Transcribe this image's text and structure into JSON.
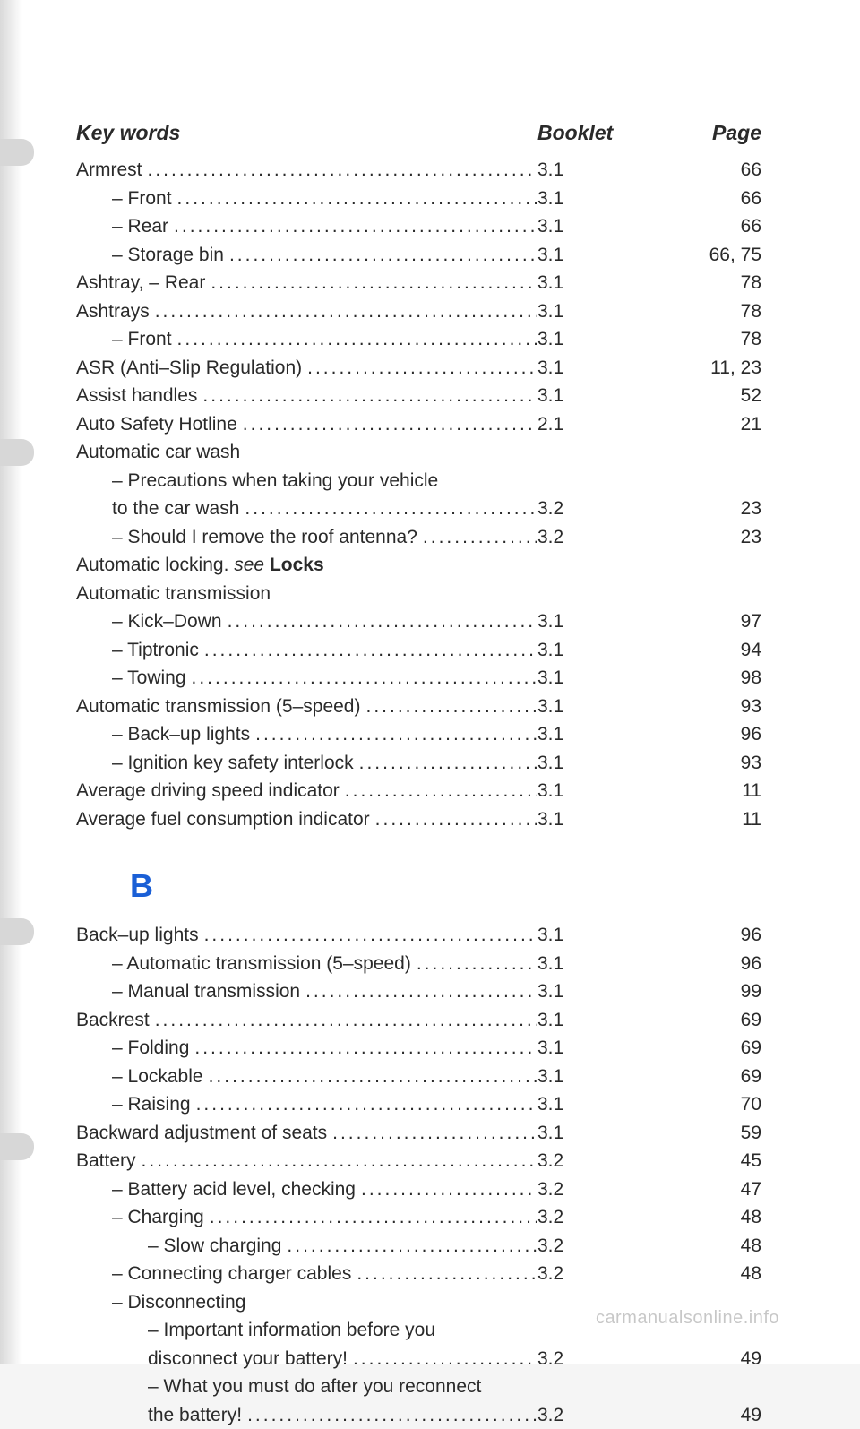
{
  "header": {
    "keywords": "Key words",
    "booklet": "Booklet",
    "page": "Page"
  },
  "section_letter": "B",
  "watermark": "carmanualsonline.info",
  "entries_a": [
    {
      "term": "Armrest",
      "indent": 0,
      "booklet": "3.1",
      "page": "66",
      "leader": true
    },
    {
      "term": "– Front",
      "indent": 1,
      "booklet": "3.1",
      "page": "66",
      "leader": true
    },
    {
      "term": "– Rear",
      "indent": 1,
      "booklet": "3.1",
      "page": "66",
      "leader": true
    },
    {
      "term": "– Storage bin",
      "indent": 1,
      "booklet": "3.1",
      "page": "66, 75",
      "leader": true
    },
    {
      "term": "Ashtray, – Rear",
      "indent": 0,
      "booklet": "3.1",
      "page": "78",
      "leader": true
    },
    {
      "term": "Ashtrays",
      "indent": 0,
      "booklet": "3.1",
      "page": "78",
      "leader": true
    },
    {
      "term": "– Front",
      "indent": 1,
      "booklet": "3.1",
      "page": "78",
      "leader": true
    },
    {
      "term": "ASR (Anti–Slip Regulation)",
      "indent": 0,
      "booklet": "3.1",
      "page": "11, 23",
      "leader": true
    },
    {
      "term": "Assist handles",
      "indent": 0,
      "booklet": "3.1",
      "page": "52",
      "leader": true
    },
    {
      "term": "Auto Safety Hotline",
      "indent": 0,
      "booklet": "2.1",
      "page": "21",
      "leader": true
    },
    {
      "term": "Automatic car wash",
      "indent": 0,
      "booklet": "",
      "page": "",
      "leader": false
    },
    {
      "term": "– Precautions when taking your vehicle",
      "indent": 1,
      "booklet": "",
      "page": "",
      "leader": false
    },
    {
      "term": "to the car wash",
      "indent": 1,
      "booklet": "3.2",
      "page": "23",
      "leader": true
    },
    {
      "term": "– Should I remove the roof antenna?",
      "indent": 1,
      "booklet": "3.2",
      "page": "23",
      "leader": true
    },
    {
      "term": "Automatic locking. see Locks",
      "indent": 0,
      "booklet": "",
      "page": "",
      "leader": false
    },
    {
      "term": "Automatic transmission",
      "indent": 0,
      "booklet": "",
      "page": "",
      "leader": false
    },
    {
      "term": "– Kick–Down",
      "indent": 1,
      "booklet": "3.1",
      "page": "97",
      "leader": true
    },
    {
      "term": "– Tiptronic",
      "indent": 1,
      "booklet": "3.1",
      "page": "94",
      "leader": true
    },
    {
      "term": "– Towing",
      "indent": 1,
      "booklet": "3.1",
      "page": "98",
      "leader": true
    },
    {
      "term": "Automatic transmission (5–speed)",
      "indent": 0,
      "booklet": "3.1",
      "page": "93",
      "leader": true
    },
    {
      "term": "– Back–up lights",
      "indent": 1,
      "booklet": "3.1",
      "page": "96",
      "leader": true
    },
    {
      "term": "– Ignition key safety interlock",
      "indent": 1,
      "booklet": "3.1",
      "page": "93",
      "leader": true
    },
    {
      "term": "Average driving speed indicator",
      "indent": 0,
      "booklet": "3.1",
      "page": "11",
      "leader": true
    },
    {
      "term": "Average fuel consumption indicator",
      "indent": 0,
      "booklet": "3.1",
      "page": "11",
      "leader": true
    }
  ],
  "entries_b": [
    {
      "term": "Back–up lights",
      "indent": 0,
      "booklet": "3.1",
      "page": "96",
      "leader": true
    },
    {
      "term": "– Automatic transmission (5–speed)",
      "indent": 1,
      "booklet": "3.1",
      "page": "96",
      "leader": true
    },
    {
      "term": "– Manual transmission",
      "indent": 1,
      "booklet": "3.1",
      "page": "99",
      "leader": true
    },
    {
      "term": "Backrest",
      "indent": 0,
      "booklet": "3.1",
      "page": "69",
      "leader": true
    },
    {
      "term": "– Folding",
      "indent": 1,
      "booklet": "3.1",
      "page": "69",
      "leader": true
    },
    {
      "term": "– Lockable",
      "indent": 1,
      "booklet": "3.1",
      "page": "69",
      "leader": true
    },
    {
      "term": "– Raising",
      "indent": 1,
      "booklet": "3.1",
      "page": "70",
      "leader": true
    },
    {
      "term": "Backward adjustment of seats",
      "indent": 0,
      "booklet": "3.1",
      "page": "59",
      "leader": true
    },
    {
      "term": "Battery",
      "indent": 0,
      "booklet": "3.2",
      "page": "45",
      "leader": true
    },
    {
      "term": "– Battery acid level, checking",
      "indent": 1,
      "booklet": "3.2",
      "page": "47",
      "leader": true
    },
    {
      "term": "– Charging",
      "indent": 1,
      "booklet": "3.2",
      "page": "48",
      "leader": true
    },
    {
      "term": "– Slow charging",
      "indent": 2,
      "booklet": "3.2",
      "page": "48",
      "leader": true
    },
    {
      "term": "– Connecting charger cables",
      "indent": 1,
      "booklet": "3.2",
      "page": "48",
      "leader": true
    },
    {
      "term": "– Disconnecting",
      "indent": 1,
      "booklet": "",
      "page": "",
      "leader": false
    },
    {
      "term": "– Important information before you",
      "indent": 2,
      "booklet": "",
      "page": "",
      "leader": false
    },
    {
      "term": "disconnect your battery!",
      "indent": 2,
      "booklet": "3.2",
      "page": "49",
      "leader": true
    },
    {
      "term": "– What you must do after you reconnect",
      "indent": 2,
      "booklet": "",
      "page": "",
      "leader": false
    },
    {
      "term": "the battery!",
      "indent": 2,
      "booklet": "3.2",
      "page": "49",
      "leader": true
    }
  ]
}
